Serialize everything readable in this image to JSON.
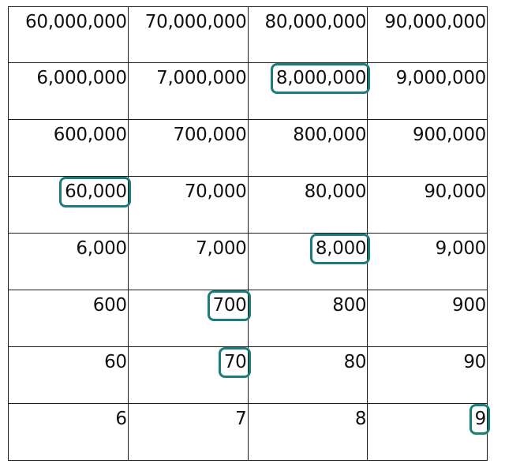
{
  "colors": {
    "highlight": "#1a7f7a",
    "grid_line": "#1a1a1a",
    "text": "#111111"
  },
  "rows": [
    {
      "cells": [
        {
          "value": "60,000,000",
          "circled": false
        },
        {
          "value": "70,000,000",
          "circled": false
        },
        {
          "value": "80,000,000",
          "circled": false
        },
        {
          "value": "90,000,000",
          "circled": false
        }
      ]
    },
    {
      "cells": [
        {
          "value": "6,000,000",
          "circled": false
        },
        {
          "value": "7,000,000",
          "circled": false
        },
        {
          "value": "8,000,000",
          "circled": true
        },
        {
          "value": "9,000,000",
          "circled": false
        }
      ]
    },
    {
      "cells": [
        {
          "value": "600,000",
          "circled": false
        },
        {
          "value": "700,000",
          "circled": false
        },
        {
          "value": "800,000",
          "circled": false
        },
        {
          "value": "900,000",
          "circled": false
        }
      ]
    },
    {
      "cells": [
        {
          "value": "60,000",
          "circled": true
        },
        {
          "value": "70,000",
          "circled": false
        },
        {
          "value": "80,000",
          "circled": false
        },
        {
          "value": "90,000",
          "circled": false
        }
      ]
    },
    {
      "cells": [
        {
          "value": "6,000",
          "circled": false
        },
        {
          "value": "7,000",
          "circled": false
        },
        {
          "value": "8,000",
          "circled": true
        },
        {
          "value": "9,000",
          "circled": false
        }
      ]
    },
    {
      "cells": [
        {
          "value": "600",
          "circled": false
        },
        {
          "value": "700",
          "circled": true
        },
        {
          "value": "800",
          "circled": false
        },
        {
          "value": "900",
          "circled": false
        }
      ]
    },
    {
      "cells": [
        {
          "value": "60",
          "circled": false
        },
        {
          "value": "70",
          "circled": true
        },
        {
          "value": "80",
          "circled": false
        },
        {
          "value": "90",
          "circled": false
        }
      ]
    },
    {
      "cells": [
        {
          "value": "6",
          "circled": false
        },
        {
          "value": "7",
          "circled": false
        },
        {
          "value": "8",
          "circled": false
        },
        {
          "value": "9",
          "circled": true
        }
      ]
    }
  ]
}
